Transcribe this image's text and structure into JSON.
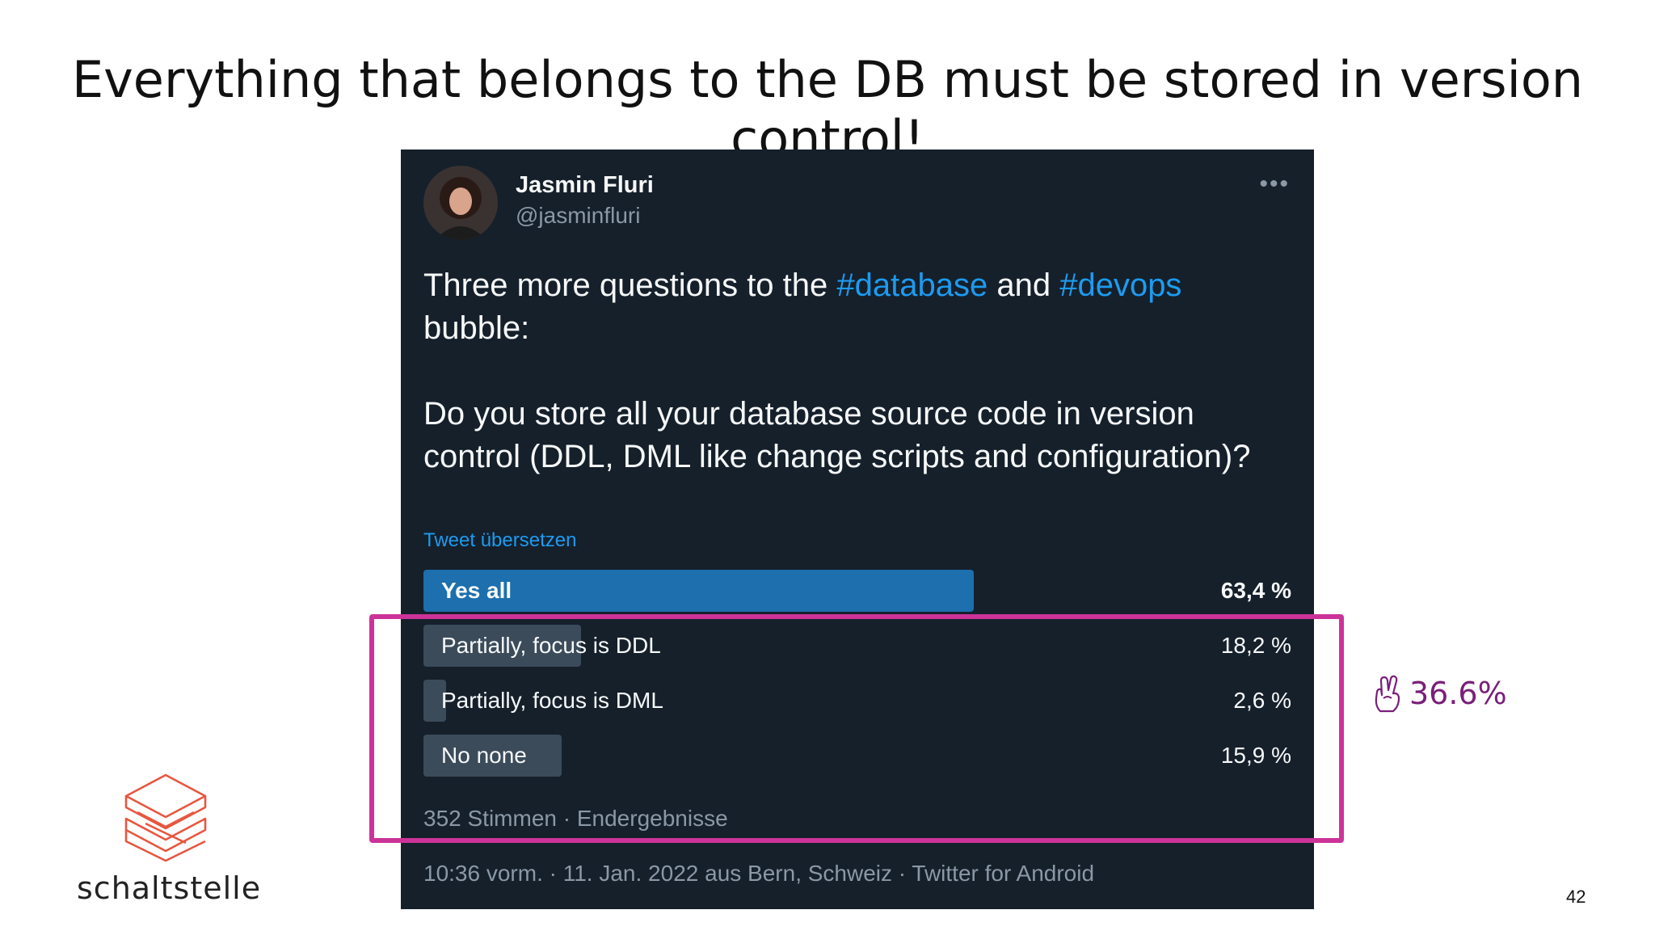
{
  "slide": {
    "title": "Everything that belongs to the DB must be stored in version control!",
    "annotation_text": "36.6%",
    "annotation_icon": "crossed-fingers-icon",
    "logo_text": "schaltstelle",
    "page_number": "42",
    "highlight_color": "#cc3399"
  },
  "tweet": {
    "author_name": "Jasmin Fluri",
    "author_handle": "@jasminfluri",
    "more_label": "•••",
    "line1_before": "Three more questions to the ",
    "hashtag1": "#database",
    "line1_mid": " and ",
    "hashtag2": "#devops",
    "line2": "bubble:",
    "question": "Do you store all your database source code in version control (DDL, DML like change scripts and configuration)?",
    "translate_link": "Tweet übersetzen",
    "poll": {
      "options": [
        {
          "label": "Yes all",
          "percent": "63,4 %",
          "value": 63.4
        },
        {
          "label": "Partially, focus is DDL",
          "percent": "18,2 %",
          "value": 18.2
        },
        {
          "label": "Partially, focus is DML",
          "percent": "2,6 %",
          "value": 2.6
        },
        {
          "label": "No none",
          "percent": "15,9 %",
          "value": 15.9
        }
      ],
      "meta": "352 Stimmen · Endergebnisse"
    },
    "footer": "10:36 vorm. · 11. Jan. 2022 aus Bern, Schweiz · Twitter for Android",
    "colors": {
      "background": "#15202b",
      "hashtag": "#1d9bf0",
      "winner_bar": "#1d6fae",
      "bar": "#3b4b5a"
    }
  }
}
